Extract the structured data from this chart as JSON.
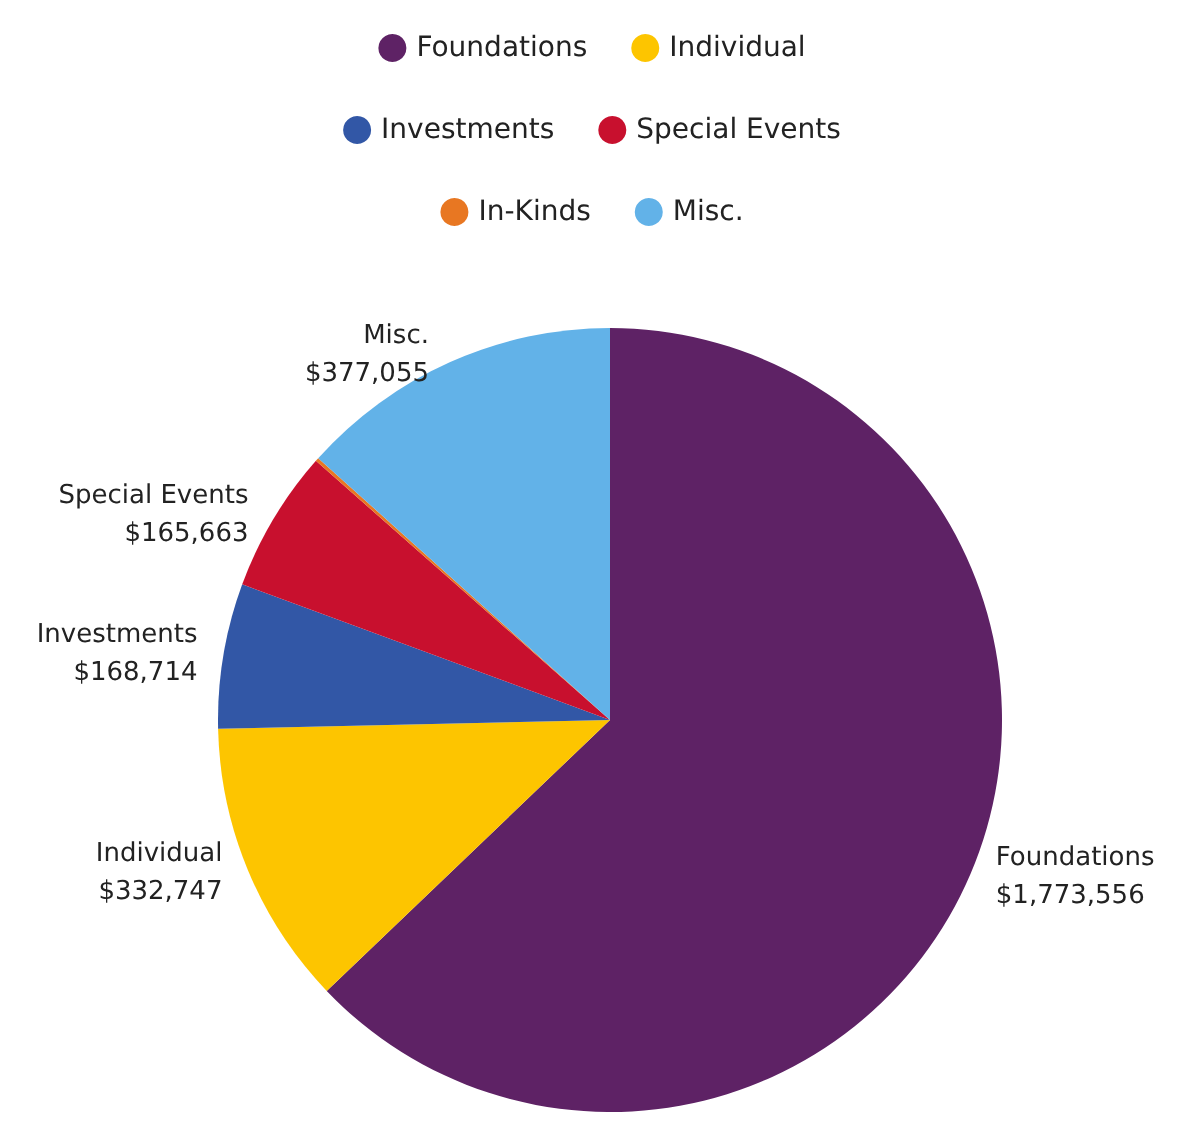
{
  "chart_data": {
    "type": "pie",
    "categories": [
      "Foundations",
      "Individual",
      "Investments",
      "Special Events",
      "In-Kinds",
      "Misc."
    ],
    "values": [
      1773556,
      332747,
      168714,
      165663,
      4000,
      377055
    ],
    "value_labels": [
      "$1,773,556",
      "$332,747",
      "$168,714",
      "$165,663",
      null,
      "$377,055"
    ],
    "colors": [
      "#5e2265",
      "#fdc500",
      "#3257a6",
      "#c8102e",
      "#e87722",
      "#62b2e8"
    ],
    "legend": "top"
  }
}
